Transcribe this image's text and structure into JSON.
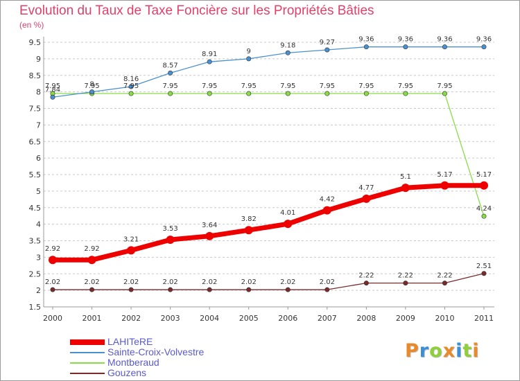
{
  "title": "Evolution du Taux de Taxe Foncière sur les Propriétés Bâties",
  "subtitle": "(en %)",
  "logo_text": "Proxiti",
  "colors": {
    "title": "#e0406a",
    "legend_text": "#5a5acc",
    "grid": "#c8c8c8",
    "axis": "#999999",
    "logo": [
      "#e8892a",
      "#3a8fd8",
      "#8fcf3a",
      "#e8892a",
      "#3a8fd8",
      "#8fcf3a",
      "#e8892a"
    ]
  },
  "chart_data": {
    "type": "line",
    "x": [
      "2000",
      "2001",
      "2002",
      "2003",
      "2004",
      "2005",
      "2006",
      "2007",
      "2008",
      "2009",
      "2010",
      "2011"
    ],
    "ylim": [
      1.5,
      9.5
    ],
    "yticks": [
      "1.5",
      "2",
      "2.5",
      "3",
      "3.5",
      "4",
      "4.5",
      "5",
      "5.5",
      "6",
      "6.5",
      "7",
      "7.5",
      "8",
      "8.5",
      "9",
      "9.5"
    ],
    "grid": "horizontal dashed",
    "legend_position": "bottom-left",
    "series": [
      {
        "name": "LAHITeRE",
        "color": "#ee0000",
        "values": [
          2.92,
          2.92,
          3.21,
          3.53,
          3.64,
          3.82,
          4.01,
          4.42,
          4.77,
          5.1,
          5.17,
          5.17
        ],
        "labels": [
          "2.92",
          "2.92",
          "3.21",
          "3.53",
          "3.64",
          "3.82",
          "4.01",
          "4.42",
          "4.77",
          "5.1",
          "5.17",
          "5.17"
        ]
      },
      {
        "name": "Sainte-Croix-Volvestre",
        "color": "#4a90d0",
        "values": [
          7.84,
          8.0,
          8.16,
          8.57,
          8.91,
          9.0,
          9.18,
          9.27,
          9.36,
          9.36,
          9.36,
          9.36
        ],
        "labels": [
          "7.84",
          "8",
          "8.16",
          "8.57",
          "8.91",
          "9",
          "9.18",
          "9.27",
          "9.36",
          "9.36",
          "9.36",
          "9.36"
        ]
      },
      {
        "name": "Montberaud",
        "color": "#88dd44",
        "values": [
          7.95,
          7.95,
          7.95,
          7.95,
          7.95,
          7.95,
          7.95,
          7.95,
          7.95,
          7.95,
          7.95,
          4.24
        ],
        "labels": [
          "7.95",
          "7.95",
          "7.95",
          "7.95",
          "7.95",
          "7.95",
          "7.95",
          "7.95",
          "7.95",
          "7.95",
          "7.95",
          "4.24"
        ]
      },
      {
        "name": "Gouzens",
        "color": "#7a2a2a",
        "values": [
          2.02,
          2.02,
          2.02,
          2.02,
          2.02,
          2.02,
          2.02,
          2.02,
          2.22,
          2.22,
          2.22,
          2.51
        ],
        "labels": [
          "2.02",
          "2.02",
          "2.02",
          "2.02",
          "2.02",
          "2.02",
          "2.02",
          "2.02",
          "2.22",
          "2.22",
          "2.22",
          "2.51"
        ]
      }
    ]
  }
}
